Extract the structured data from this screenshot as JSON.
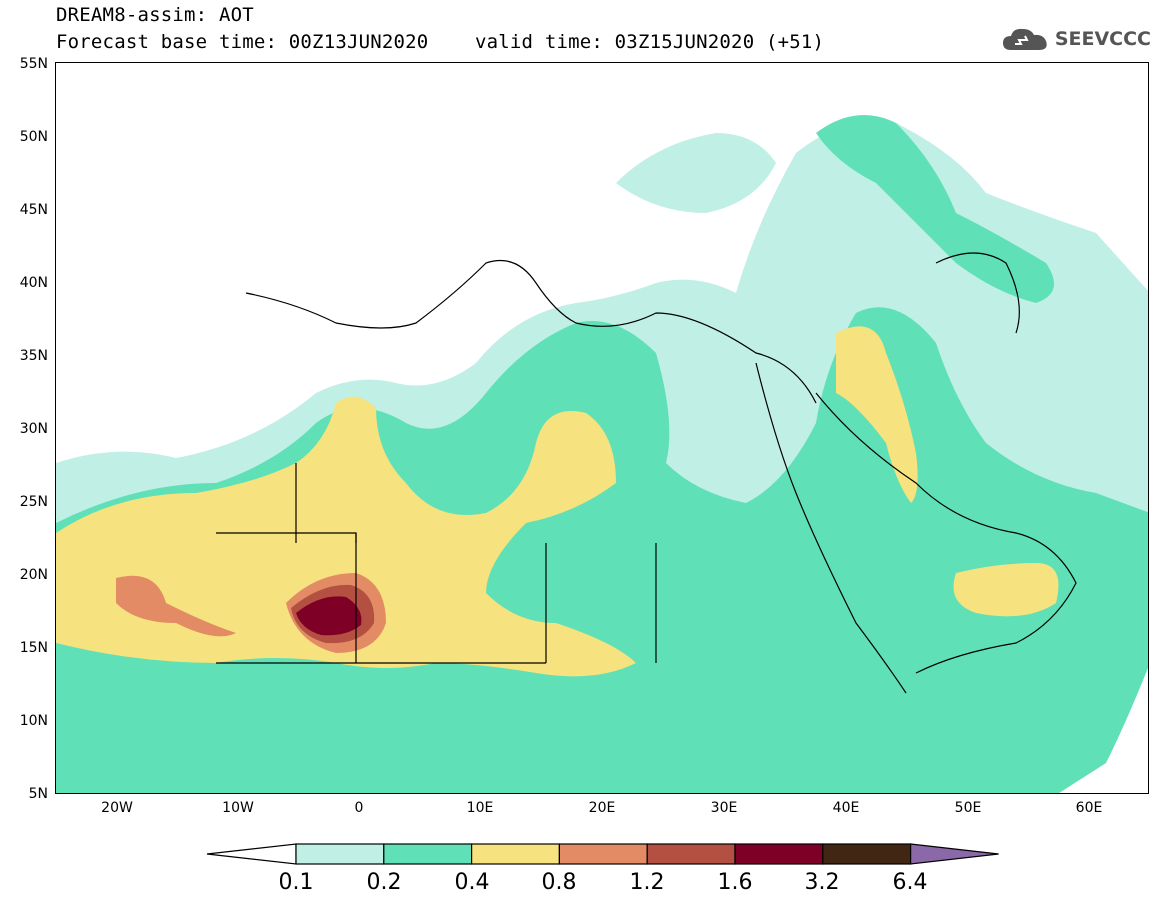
{
  "header": {
    "line1": "DREAM8-assim: AOT",
    "line2": "Forecast base time: 00Z13JUN2020    valid time: 03Z15JUN2020 (+51)"
  },
  "logo": {
    "text": "SEEVCCC",
    "icon": "cloud-icon"
  },
  "map": {
    "lat_labels": [
      "55N",
      "50N",
      "45N",
      "40N",
      "35N",
      "30N",
      "25N",
      "20N",
      "15N",
      "10N",
      "5N"
    ],
    "lon_labels": [
      "20W",
      "10W",
      "0",
      "10E",
      "20E",
      "30E",
      "40E",
      "50E",
      "60E"
    ]
  },
  "colorbar": {
    "levels": [
      "0.1",
      "0.2",
      "0.4",
      "0.8",
      "1.2",
      "1.6",
      "3.2",
      "6.4"
    ],
    "colors": [
      "#ffffff",
      "#c0efe6",
      "#5fe0b7",
      "#f6e27e",
      "#e38b65",
      "#b35041",
      "#7e0027",
      "#402613",
      "#8b68a8"
    ]
  },
  "colors": {
    "c1": "#c0efe6",
    "c2": "#5fe0b7",
    "c3": "#f6e27e",
    "c4": "#e38b65",
    "c5": "#b35041",
    "c6": "#7e0027"
  }
}
